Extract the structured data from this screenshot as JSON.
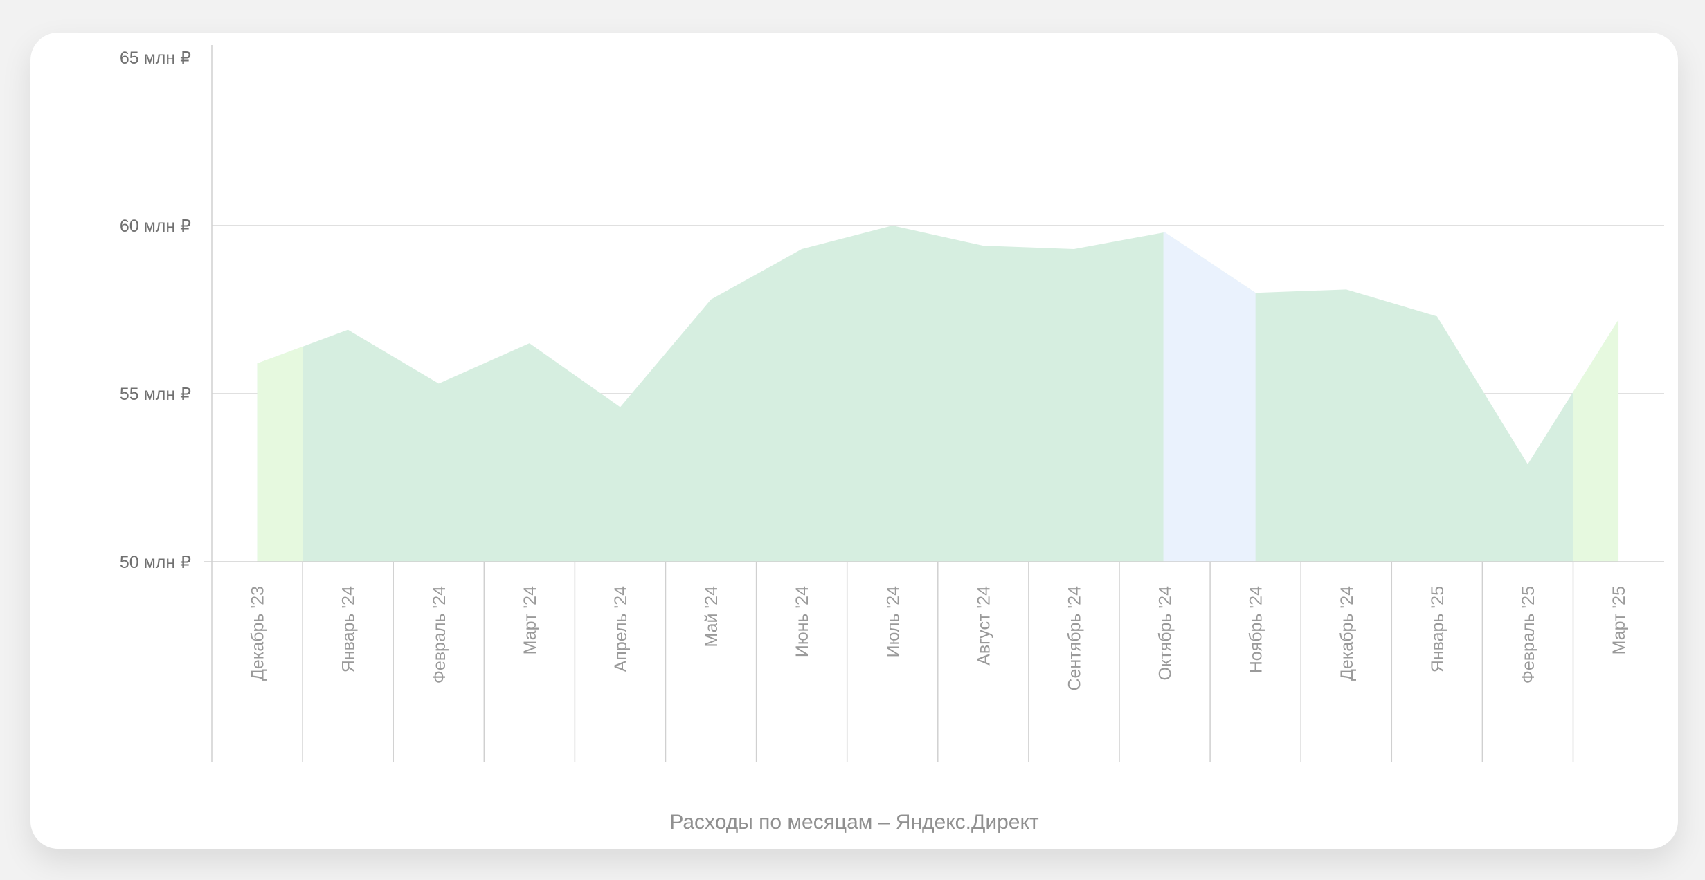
{
  "chart_data": {
    "type": "area",
    "caption": "Расходы по месяцам – Яндекс.Директ",
    "y_ticks": [
      "65 млн ₽",
      "60 млн ₽",
      "55 млн ₽",
      "50 млн ₽"
    ],
    "y_tick_values": [
      65,
      60,
      55,
      50
    ],
    "ylim": [
      50,
      65
    ],
    "y_unit": "млн ₽",
    "categories": [
      "Декабрь '23",
      "Январь '24",
      "Февраль '24",
      "Март '24",
      "Апрель '24",
      "Май '24",
      "Июнь '24",
      "Июль '24",
      "Август '24",
      "Сентябрь '24",
      "Октябрь '24",
      "Ноябрь '24",
      "Декабрь '24",
      "Январь '25",
      "Февраль '25",
      "Март '25"
    ],
    "values": [
      55.9,
      56.9,
      55.3,
      56.5,
      54.6,
      57.8,
      59.3,
      60.0,
      59.4,
      59.3,
      59.8,
      58.0,
      58.1,
      57.3,
      52.9,
      57.2
    ],
    "highlighted_category": "Октябрь '24",
    "grid": "horizontal",
    "legend": "none",
    "colors": {
      "fill": "#d6eee0",
      "edge_fill": "#e6f9df",
      "highlight_fill": "#eaf2fd",
      "grid": "#d6d6d6",
      "axis": "#d0d0d0"
    }
  }
}
